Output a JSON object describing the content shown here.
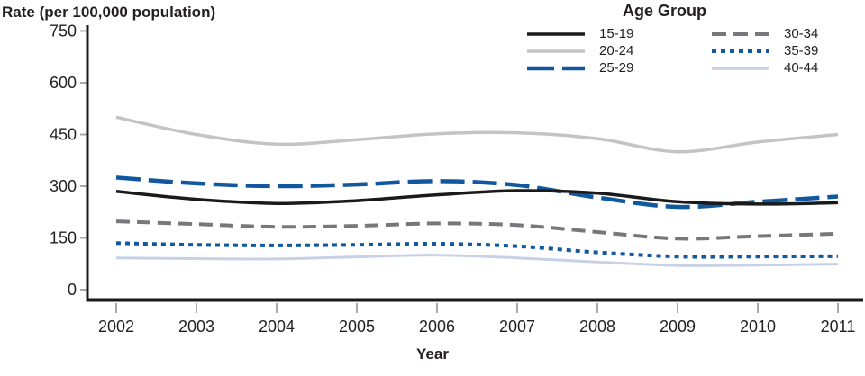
{
  "chart_data": {
    "type": "line",
    "title": "",
    "ylabel": "Rate (per 100,000 population)",
    "xlabel": "Year",
    "legend_title": "Age Group",
    "legend_position": "top-right",
    "grid": false,
    "x": [
      2002,
      2003,
      2004,
      2005,
      2006,
      2007,
      2008,
      2009,
      2010,
      2011
    ],
    "yticks": [
      0,
      150,
      300,
      450,
      600,
      750
    ],
    "ylim": [
      0,
      750
    ],
    "series": [
      {
        "name": "15-19",
        "color": "#1a1a1a",
        "style": "solid",
        "width": 3.5,
        "values": [
          285,
          262,
          250,
          258,
          275,
          287,
          280,
          255,
          248,
          252
        ]
      },
      {
        "name": "20-24",
        "color": "#c4c4c6",
        "style": "solid",
        "width": 3.5,
        "values": [
          500,
          450,
          422,
          435,
          452,
          455,
          438,
          400,
          428,
          450
        ]
      },
      {
        "name": "25-29",
        "color": "#11589f",
        "style": "long-dash",
        "width": 4.5,
        "values": [
          325,
          308,
          300,
          305,
          315,
          303,
          267,
          240,
          255,
          270
        ]
      },
      {
        "name": "30-34",
        "color": "#77787b",
        "style": "dash",
        "width": 4,
        "values": [
          198,
          190,
          182,
          185,
          192,
          187,
          167,
          148,
          155,
          162
        ]
      },
      {
        "name": "35-39",
        "color": "#11589f",
        "style": "dot",
        "width": 4,
        "values": [
          135,
          130,
          128,
          130,
          133,
          126,
          108,
          96,
          96,
          97
        ]
      },
      {
        "name": "40-44",
        "color": "#c7d2e7",
        "style": "solid",
        "width": 3,
        "values": [
          92,
          90,
          89,
          95,
          100,
          92,
          80,
          70,
          71,
          74
        ]
      }
    ],
    "axis_color": "#1a1a1a",
    "tick_color": "#a7a9ac",
    "text_color": "#231f20"
  }
}
